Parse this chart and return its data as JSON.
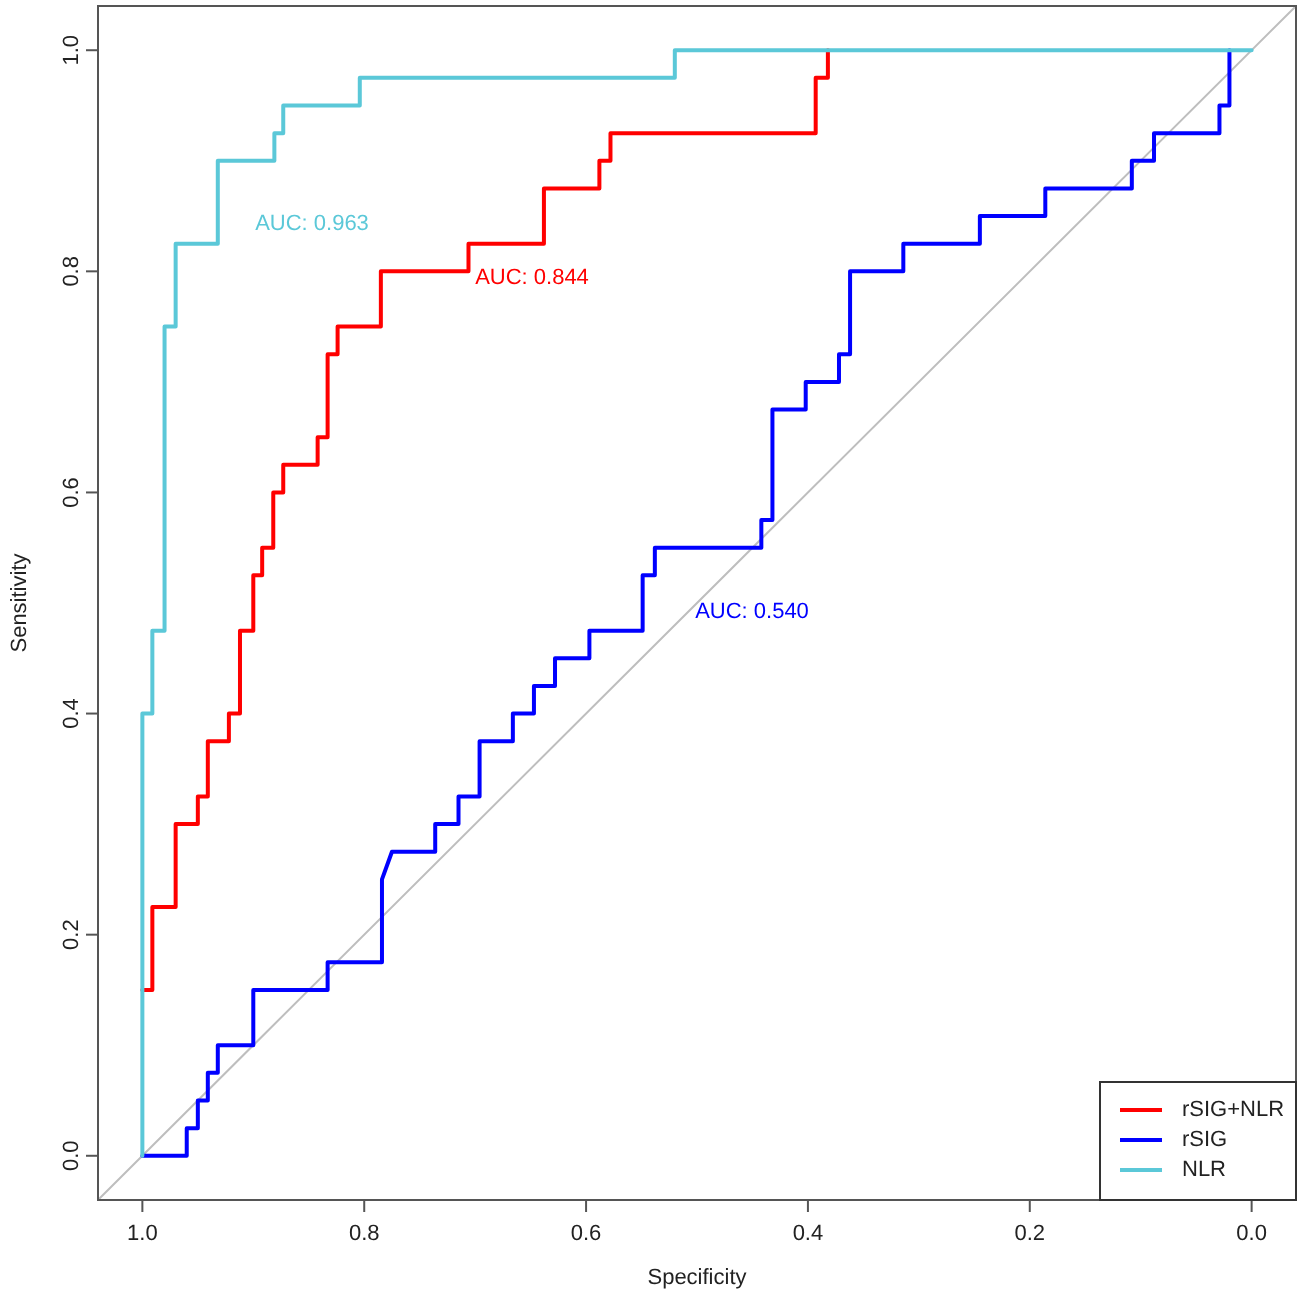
{
  "chart_data": {
    "type": "line",
    "xlabel": "Specificity",
    "ylabel": "Sensitivity",
    "xlim": [
      1.04,
      -0.04
    ],
    "ylim": [
      -0.04,
      1.04
    ],
    "xticks": [
      {
        "value": 1,
        "label": "1.0"
      },
      {
        "value": 0.8,
        "label": "0.8"
      },
      {
        "value": 0.6,
        "label": "0.6"
      },
      {
        "value": 0.4,
        "label": "0.4"
      },
      {
        "value": 0.2,
        "label": "0.2"
      },
      {
        "value": 0,
        "label": "0.0"
      }
    ],
    "yticks": [
      {
        "value": 0,
        "label": "0.0"
      },
      {
        "value": 0.2,
        "label": "0.2"
      },
      {
        "value": 0.4,
        "label": "0.4"
      },
      {
        "value": 0.6,
        "label": "0.6"
      },
      {
        "value": 0.8,
        "label": "0.8"
      },
      {
        "value": 1,
        "label": "1.0"
      }
    ],
    "grid": false,
    "legend": "bottom right",
    "line_style": "solid",
    "marker": "none",
    "series": [
      {
        "color": "#bebebe",
        "x": [
          1.04,
          -0.04
        ],
        "values": [
          -0.04,
          1.04
        ]
      },
      {
        "name": "rSIG+NLR",
        "color": "#ff0000",
        "x": [
          1.0,
          0.991,
          0.991,
          0.97,
          0.97,
          0.95,
          0.95,
          0.941,
          0.941,
          0.922,
          0.922,
          0.912,
          0.912,
          0.9,
          0.9,
          0.892,
          0.892,
          0.882,
          0.882,
          0.873,
          0.873,
          0.842,
          0.842,
          0.833,
          0.833,
          0.824,
          0.824,
          0.785,
          0.785,
          0.706,
          0.706,
          0.638,
          0.638,
          0.588,
          0.588,
          0.578,
          0.578,
          0.393,
          0.393,
          0.382,
          0.382
        ],
        "values": [
          0.15,
          0.15,
          0.225,
          0.225,
          0.3,
          0.3,
          0.325,
          0.325,
          0.375,
          0.375,
          0.4,
          0.4,
          0.475,
          0.475,
          0.525,
          0.525,
          0.55,
          0.55,
          0.6,
          0.6,
          0.625,
          0.625,
          0.65,
          0.65,
          0.725,
          0.725,
          0.75,
          0.75,
          0.8,
          0.8,
          0.825,
          0.825,
          0.875,
          0.875,
          0.9,
          0.9,
          0.925,
          0.925,
          0.975,
          0.975,
          1.0
        ]
      },
      {
        "name": "rSIG",
        "color": "#0000ff",
        "x": [
          1.0,
          0.96,
          0.96,
          0.95,
          0.95,
          0.941,
          0.941,
          0.932,
          0.932,
          0.9,
          0.9,
          0.833,
          0.833,
          0.784,
          0.784,
          0.775,
          0.736,
          0.736,
          0.715,
          0.715,
          0.696,
          0.696,
          0.666,
          0.666,
          0.647,
          0.647,
          0.628,
          0.628,
          0.597,
          0.597,
          0.549,
          0.549,
          0.538,
          0.538,
          0.442,
          0.442,
          0.432,
          0.432,
          0.402,
          0.402,
          0.372,
          0.372,
          0.362,
          0.362,
          0.314,
          0.314,
          0.245,
          0.245,
          0.186,
          0.186,
          0.108,
          0.108,
          0.088,
          0.088,
          0.029,
          0.029,
          0.02,
          0.02
        ],
        "values": [
          0,
          0,
          0.025,
          0.025,
          0.05,
          0.05,
          0.075,
          0.075,
          0.1,
          0.1,
          0.15,
          0.15,
          0.175,
          0.175,
          0.25,
          0.275,
          0.275,
          0.3,
          0.3,
          0.325,
          0.325,
          0.375,
          0.375,
          0.4,
          0.4,
          0.425,
          0.425,
          0.45,
          0.45,
          0.475,
          0.475,
          0.525,
          0.525,
          0.55,
          0.55,
          0.575,
          0.575,
          0.675,
          0.675,
          0.7,
          0.7,
          0.725,
          0.725,
          0.8,
          0.8,
          0.825,
          0.825,
          0.85,
          0.85,
          0.875,
          0.875,
          0.9,
          0.9,
          0.925,
          0.925,
          0.95,
          0.95,
          1.0
        ]
      },
      {
        "name": "NLR",
        "color": "#5bc8d8",
        "x": [
          1.0,
          1.0,
          0.991,
          0.991,
          0.98,
          0.98,
          0.97,
          0.97,
          0.932,
          0.932,
          0.881,
          0.881,
          0.873,
          0.873,
          0.804,
          0.804,
          0.52,
          0.52,
          0.0
        ],
        "values": [
          0,
          0.4,
          0.4,
          0.475,
          0.475,
          0.75,
          0.75,
          0.825,
          0.825,
          0.9,
          0.9,
          0.925,
          0.925,
          0.95,
          0.95,
          0.975,
          0.975,
          1.0,
          1.0
        ]
      }
    ],
    "annotations": [
      "AUC: 0.844",
      "AUC: 0.540",
      "AUC: 0.963"
    ]
  }
}
